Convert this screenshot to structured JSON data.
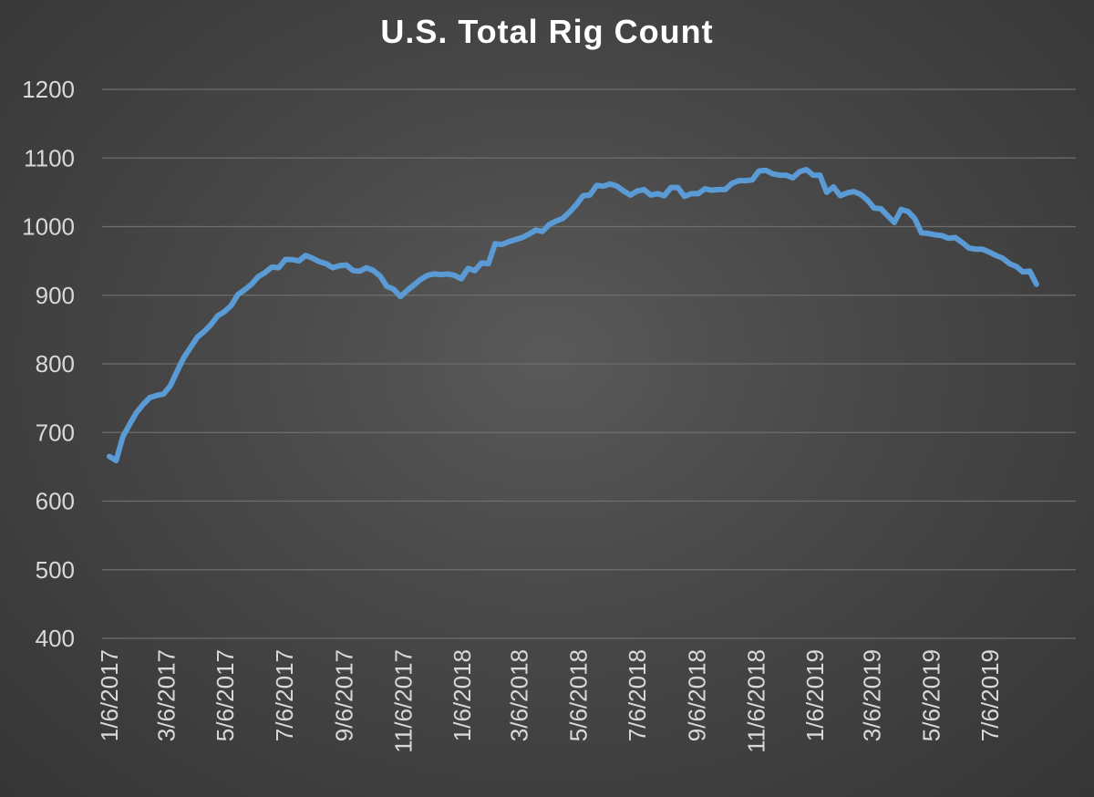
{
  "chart_data": {
    "type": "line",
    "title": "U.S. Total Rig Count",
    "xlabel": "",
    "ylabel": "",
    "ylim": [
      400,
      1200
    ],
    "yticks": [
      400,
      500,
      600,
      700,
      800,
      900,
      1000,
      1100,
      1200
    ],
    "xlim": [
      "1/6/2017",
      "9/27/2019"
    ],
    "xticks": [
      "1/6/2017",
      "3/6/2017",
      "5/6/2017",
      "7/6/2017",
      "9/6/2017",
      "11/6/2017",
      "1/6/2018",
      "3/6/2018",
      "5/6/2018",
      "7/6/2018",
      "9/6/2018",
      "11/6/2018",
      "1/6/2019",
      "3/6/2019",
      "5/6/2019",
      "7/6/2019"
    ],
    "grid": true,
    "legend": "none",
    "series": [
      {
        "color": "#5b9bd5",
        "points": [
          [
            "1/6/2017",
            665
          ],
          [
            "1/13/2017",
            659
          ],
          [
            "1/20/2017",
            694
          ],
          [
            "1/27/2017",
            712
          ],
          [
            "2/3/2017",
            729
          ],
          [
            "2/10/2017",
            741
          ],
          [
            "2/17/2017",
            751
          ],
          [
            "2/24/2017",
            754
          ],
          [
            "3/3/2017",
            756
          ],
          [
            "3/10/2017",
            768
          ],
          [
            "3/17/2017",
            789
          ],
          [
            "3/24/2017",
            809
          ],
          [
            "3/31/2017",
            824
          ],
          [
            "4/7/2017",
            839
          ],
          [
            "4/14/2017",
            847
          ],
          [
            "4/21/2017",
            857
          ],
          [
            "4/28/2017",
            870
          ],
          [
            "5/5/2017",
            876
          ],
          [
            "5/12/2017",
            885
          ],
          [
            "5/19/2017",
            901
          ],
          [
            "5/26/2017",
            908
          ],
          [
            "6/2/2017",
            916
          ],
          [
            "6/9/2017",
            927
          ],
          [
            "6/16/2017",
            933
          ],
          [
            "6/23/2017",
            941
          ],
          [
            "6/30/2017",
            940
          ],
          [
            "7/7/2017",
            952
          ],
          [
            "7/14/2017",
            952
          ],
          [
            "7/21/2017",
            950
          ],
          [
            "7/28/2017",
            958
          ],
          [
            "8/4/2017",
            954
          ],
          [
            "8/11/2017",
            949
          ],
          [
            "8/18/2017",
            946
          ],
          [
            "8/25/2017",
            940
          ],
          [
            "9/1/2017",
            943
          ],
          [
            "9/8/2017",
            944
          ],
          [
            "9/15/2017",
            936
          ],
          [
            "9/22/2017",
            935
          ],
          [
            "9/29/2017",
            940
          ],
          [
            "10/6/2017",
            936
          ],
          [
            "10/13/2017",
            928
          ],
          [
            "10/20/2017",
            913
          ],
          [
            "10/27/2017",
            909
          ],
          [
            "11/3/2017",
            898
          ],
          [
            "11/10/2017",
            907
          ],
          [
            "11/17/2017",
            915
          ],
          [
            "11/24/2017",
            923
          ],
          [
            "12/1/2017",
            929
          ],
          [
            "12/8/2017",
            931
          ],
          [
            "12/15/2017",
            930
          ],
          [
            "12/22/2017",
            931
          ],
          [
            "12/29/2017",
            929
          ],
          [
            "1/5/2018",
            924
          ],
          [
            "1/12/2018",
            939
          ],
          [
            "1/19/2018",
            936
          ],
          [
            "1/26/2018",
            947
          ],
          [
            "2/2/2018",
            946
          ],
          [
            "2/9/2018",
            975
          ],
          [
            "2/16/2018",
            974
          ],
          [
            "2/23/2018",
            978
          ],
          [
            "3/2/2018",
            981
          ],
          [
            "3/9/2018",
            984
          ],
          [
            "3/16/2018",
            989
          ],
          [
            "3/23/2018",
            995
          ],
          [
            "3/30/2018",
            993
          ],
          [
            "4/6/2018",
            1003
          ],
          [
            "4/13/2018",
            1008
          ],
          [
            "4/20/2018",
            1012
          ],
          [
            "4/27/2018",
            1021
          ],
          [
            "5/4/2018",
            1032
          ],
          [
            "5/11/2018",
            1045
          ],
          [
            "5/18/2018",
            1046
          ],
          [
            "5/25/2018",
            1060
          ],
          [
            "6/1/2018",
            1059
          ],
          [
            "6/8/2018",
            1062
          ],
          [
            "6/15/2018",
            1059
          ],
          [
            "6/22/2018",
            1052
          ],
          [
            "6/29/2018",
            1046
          ],
          [
            "7/6/2018",
            1052
          ],
          [
            "7/13/2018",
            1054
          ],
          [
            "7/20/2018",
            1046
          ],
          [
            "7/27/2018",
            1048
          ],
          [
            "8/3/2018",
            1045
          ],
          [
            "8/10/2018",
            1057
          ],
          [
            "8/17/2018",
            1057
          ],
          [
            "8/24/2018",
            1044
          ],
          [
            "8/31/2018",
            1048
          ],
          [
            "9/7/2018",
            1048
          ],
          [
            "9/14/2018",
            1055
          ],
          [
            "9/21/2018",
            1053
          ],
          [
            "9/28/2018",
            1054
          ],
          [
            "10/5/2018",
            1054
          ],
          [
            "10/12/2018",
            1063
          ],
          [
            "10/19/2018",
            1067
          ],
          [
            "10/26/2018",
            1067
          ],
          [
            "11/2/2018",
            1068
          ],
          [
            "11/9/2018",
            1081
          ],
          [
            "11/16/2018",
            1082
          ],
          [
            "11/23/2018",
            1077
          ],
          [
            "11/30/2018",
            1075
          ],
          [
            "12/7/2018",
            1075
          ],
          [
            "12/14/2018",
            1071
          ],
          [
            "12/21/2018",
            1080
          ],
          [
            "12/28/2018",
            1083
          ],
          [
            "1/4/2019",
            1075
          ],
          [
            "1/11/2019",
            1075
          ],
          [
            "1/18/2019",
            1050
          ],
          [
            "1/25/2019",
            1058
          ],
          [
            "2/1/2019",
            1045
          ],
          [
            "2/8/2019",
            1049
          ],
          [
            "2/15/2019",
            1051
          ],
          [
            "2/22/2019",
            1047
          ],
          [
            "3/1/2019",
            1039
          ],
          [
            "3/8/2019",
            1027
          ],
          [
            "3/15/2019",
            1026
          ],
          [
            "3/22/2019",
            1016
          ],
          [
            "3/29/2019",
            1006
          ],
          [
            "4/5/2019",
            1025
          ],
          [
            "4/12/2019",
            1022
          ],
          [
            "4/19/2019",
            1012
          ],
          [
            "4/26/2019",
            991
          ],
          [
            "5/3/2019",
            990
          ],
          [
            "5/10/2019",
            988
          ],
          [
            "5/17/2019",
            987
          ],
          [
            "5/24/2019",
            983
          ],
          [
            "5/31/2019",
            984
          ],
          [
            "6/7/2019",
            977
          ],
          [
            "6/14/2019",
            969
          ],
          [
            "6/21/2019",
            967
          ],
          [
            "6/28/2019",
            967
          ],
          [
            "7/5/2019",
            963
          ],
          [
            "7/12/2019",
            958
          ],
          [
            "7/19/2019",
            954
          ],
          [
            "7/26/2019",
            946
          ],
          [
            "8/2/2019",
            942
          ],
          [
            "8/9/2019",
            934
          ],
          [
            "8/16/2019",
            935
          ],
          [
            "8/23/2019",
            916
          ]
        ]
      }
    ]
  }
}
